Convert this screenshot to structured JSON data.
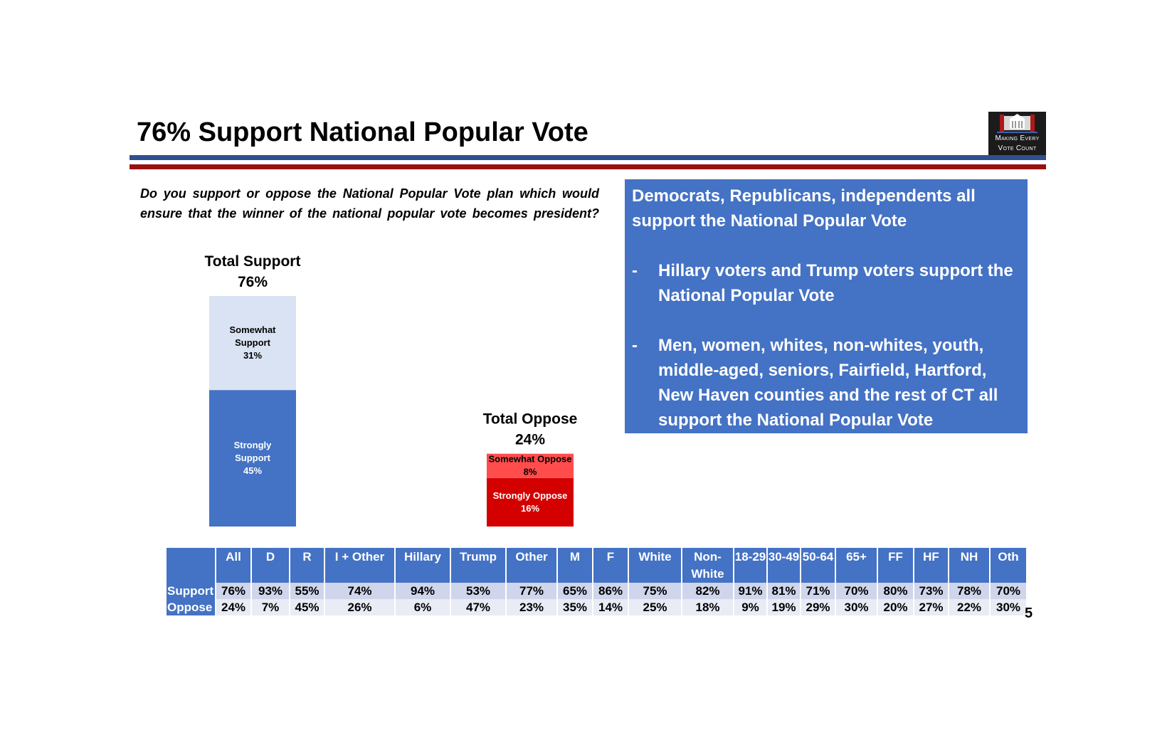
{
  "slide": {
    "title": "76% Support National Popular Vote",
    "page_number": "5"
  },
  "logo": {
    "line1": "Making Every",
    "line2": "Vote Count",
    "background": "#1b1b1b"
  },
  "question": "Do you support or oppose the National Popular Vote plan which would ensure that the winner of the national popular vote becomes president?",
  "callout": {
    "headline": "Democrats, Republicans, independents all support the National Popular Vote",
    "bullets": [
      "Hillary voters and Trump voters support the National Popular Vote",
      "Men, women, whites, non-whites, youth, middle-aged, seniors, Fairfield, Hartford, New Haven counties and the rest of CT all support the National Popular Vote"
    ],
    "bullet_marker": "-",
    "background": "#4472c4"
  },
  "chart_data": {
    "type": "bar",
    "stacked": true,
    "categories": [
      "Total Support",
      "Total Oppose"
    ],
    "totals": [
      {
        "label": "Total Support",
        "value_label": "76%",
        "value": 76
      },
      {
        "label": "Total Oppose",
        "value_label": "24%",
        "value": 24
      }
    ],
    "segments": [
      {
        "bar": 0,
        "label": "Strongly Support",
        "value": 45,
        "value_label": "45%",
        "color": "#4472c4",
        "text_color": "#ffffff"
      },
      {
        "bar": 0,
        "label": "Somewhat Support",
        "value": 31,
        "value_label": "31%",
        "color": "#dae3f3",
        "text_color": "#000000"
      },
      {
        "bar": 1,
        "label": "Strongly Oppose",
        "value": 16,
        "value_label": "16%",
        "color": "#d40000",
        "text_color": "#ffffff"
      },
      {
        "bar": 1,
        "label": "Somewhat Oppose",
        "value": 8,
        "value_label": "8%",
        "color": "#ff4d4d",
        "text_color": "#000000"
      }
    ],
    "ylim": [
      0,
      76
    ],
    "grid": false,
    "legend": "none"
  },
  "crosstab": {
    "columns": [
      {
        "label": "All"
      },
      {
        "label": "D"
      },
      {
        "label": "R"
      },
      {
        "label": "I + Other"
      },
      {
        "label": "Hillary"
      },
      {
        "label": "Trump"
      },
      {
        "label": "Other"
      },
      {
        "label": "M"
      },
      {
        "label": "F"
      },
      {
        "label": "White"
      },
      {
        "label": "Non-White"
      },
      {
        "label": "18-29"
      },
      {
        "label": "30-49"
      },
      {
        "label": "50-64"
      },
      {
        "label": "65+"
      },
      {
        "label": "FF"
      },
      {
        "label": "HF"
      },
      {
        "label": "NH"
      },
      {
        "label": "Oth"
      }
    ],
    "rows": [
      {
        "label": "Support",
        "values": [
          "76%",
          "93%",
          "55%",
          "74%",
          "94%",
          "53%",
          "77%",
          "65%",
          "86%",
          "75%",
          "82%",
          "91%",
          "81%",
          "71%",
          "70%",
          "80%",
          "73%",
          "78%",
          "70%"
        ]
      },
      {
        "label": "Oppose",
        "values": [
          "24%",
          "7%",
          "45%",
          "26%",
          "6%",
          "47%",
          "23%",
          "35%",
          "14%",
          "25%",
          "18%",
          "9%",
          "19%",
          "29%",
          "30%",
          "20%",
          "27%",
          "22%",
          "30%"
        ]
      }
    ]
  }
}
